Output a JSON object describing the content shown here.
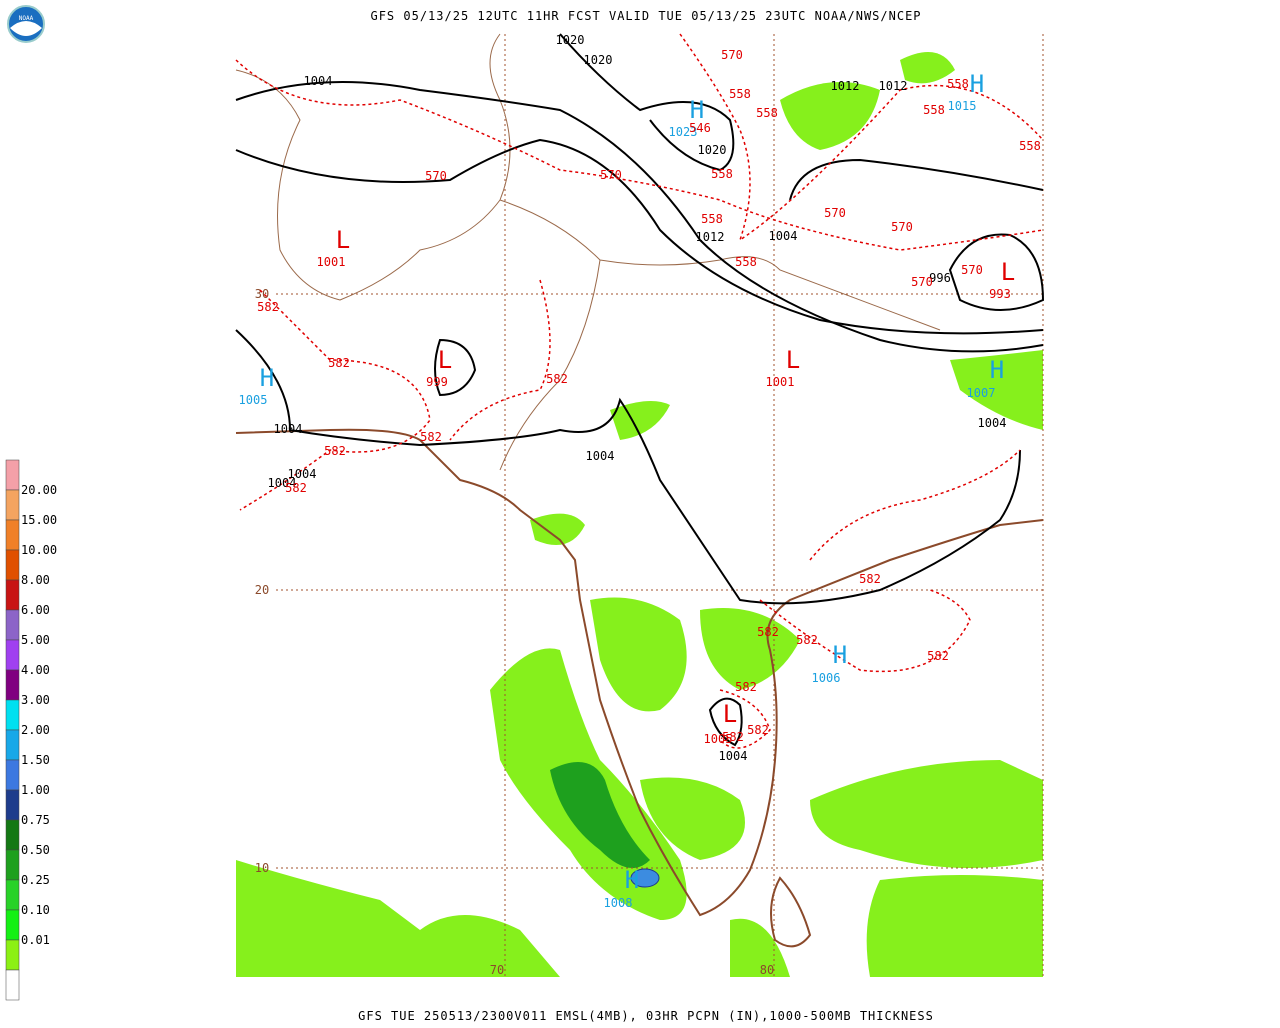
{
  "header": {
    "title": "GFS 05/13/25 12UTC 11HR FCST VALID TUE 05/13/25 23UTC NOAA/NWS/NCEP",
    "logo": "NOAA"
  },
  "footer": {
    "text": "GFS TUE 250513/2300V011 EMSL(4MB), 03HR PCPN (IN),1000-500MB THICKNESS"
  },
  "legend": {
    "colors": [
      "#f4a0a8",
      "#f4a460",
      "#f08028",
      "#e05000",
      "#c81414",
      "#8c64c8",
      "#a040f0",
      "#800080",
      "#00e0f0",
      "#18a8e8",
      "#3c78e0",
      "#1e3c8c",
      "#147814",
      "#1ea01e",
      "#28d228",
      "#14f014",
      "#8cf014",
      "#ffffff"
    ],
    "labels": [
      "20.00",
      "15.00",
      "10.00",
      "8.00",
      "6.00",
      "5.00",
      "4.00",
      "3.00",
      "2.00",
      "1.50",
      "1.00",
      "0.75",
      "0.50",
      "0.25",
      "0.10",
      "0.01"
    ]
  },
  "map": {
    "grid_labels": [
      30,
      20,
      10,
      70,
      80
    ],
    "centers": [
      {
        "symbol": "L",
        "value": 1001
      },
      {
        "symbol": "L",
        "value": 999
      },
      {
        "symbol": "L",
        "value": 1001
      },
      {
        "symbol": "L",
        "value": 993
      },
      {
        "symbol": "H",
        "value": 1005
      },
      {
        "symbol": "H",
        "value": 1015
      },
      {
        "symbol": "H",
        "value": 1023
      },
      {
        "symbol": "H",
        "value": 1007
      },
      {
        "symbol": "H",
        "value": 1006
      },
      {
        "symbol": "L",
        "value": 1005
      },
      {
        "symbol": "H",
        "value": 1008
      }
    ],
    "isobar_labels": [
      1020,
      1020,
      1020,
      1012,
      1012,
      1012,
      1004,
      1004,
      1004,
      1004,
      1004,
      1004,
      1004,
      1004,
      996
    ],
    "thickness_labels": [
      570,
      570,
      570,
      570,
      570,
      570,
      570,
      558,
      558,
      558,
      558,
      558,
      558,
      558,
      558,
      546,
      582,
      582,
      582,
      582,
      582,
      582,
      582,
      582,
      582,
      582,
      582,
      582,
      582
    ]
  }
}
